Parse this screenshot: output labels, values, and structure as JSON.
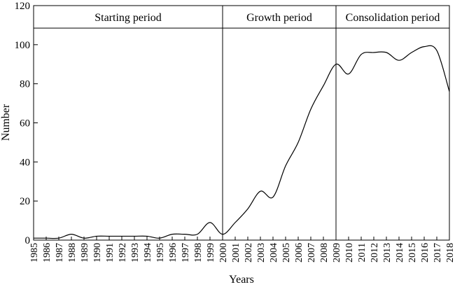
{
  "chart_data": {
    "type": "line",
    "xlabel": "Years",
    "ylabel": "Number",
    "ylim": [
      0,
      120
    ],
    "yticks": [
      0,
      20,
      40,
      60,
      80,
      100,
      120
    ],
    "xlim": [
      1985,
      2018
    ],
    "grid": false,
    "x": [
      1985,
      1986,
      1987,
      1988,
      1989,
      1990,
      1991,
      1992,
      1993,
      1994,
      1995,
      1996,
      1997,
      1998,
      1999,
      2000,
      2001,
      2002,
      2003,
      2004,
      2005,
      2006,
      2007,
      2008,
      2009,
      2010,
      2011,
      2012,
      2013,
      2014,
      2015,
      2016,
      2017,
      2018
    ],
    "series": [
      {
        "values": [
          1,
          1,
          1,
          3,
          1,
          2,
          2,
          2,
          2,
          2,
          1,
          3,
          3,
          3,
          9,
          3,
          9,
          16,
          25,
          22,
          38,
          50,
          67,
          79,
          90,
          85,
          95,
          96,
          96,
          92,
          96,
          99,
          97,
          76
        ]
      }
    ],
    "regions": [
      {
        "label": "Starting period",
        "from": 1985,
        "to": 2000
      },
      {
        "label": "Growth period",
        "from": 2000,
        "to": 2009
      },
      {
        "label": "Consolidation period",
        "from": 2009,
        "to": 2018
      }
    ],
    "band_value": 108.5
  }
}
